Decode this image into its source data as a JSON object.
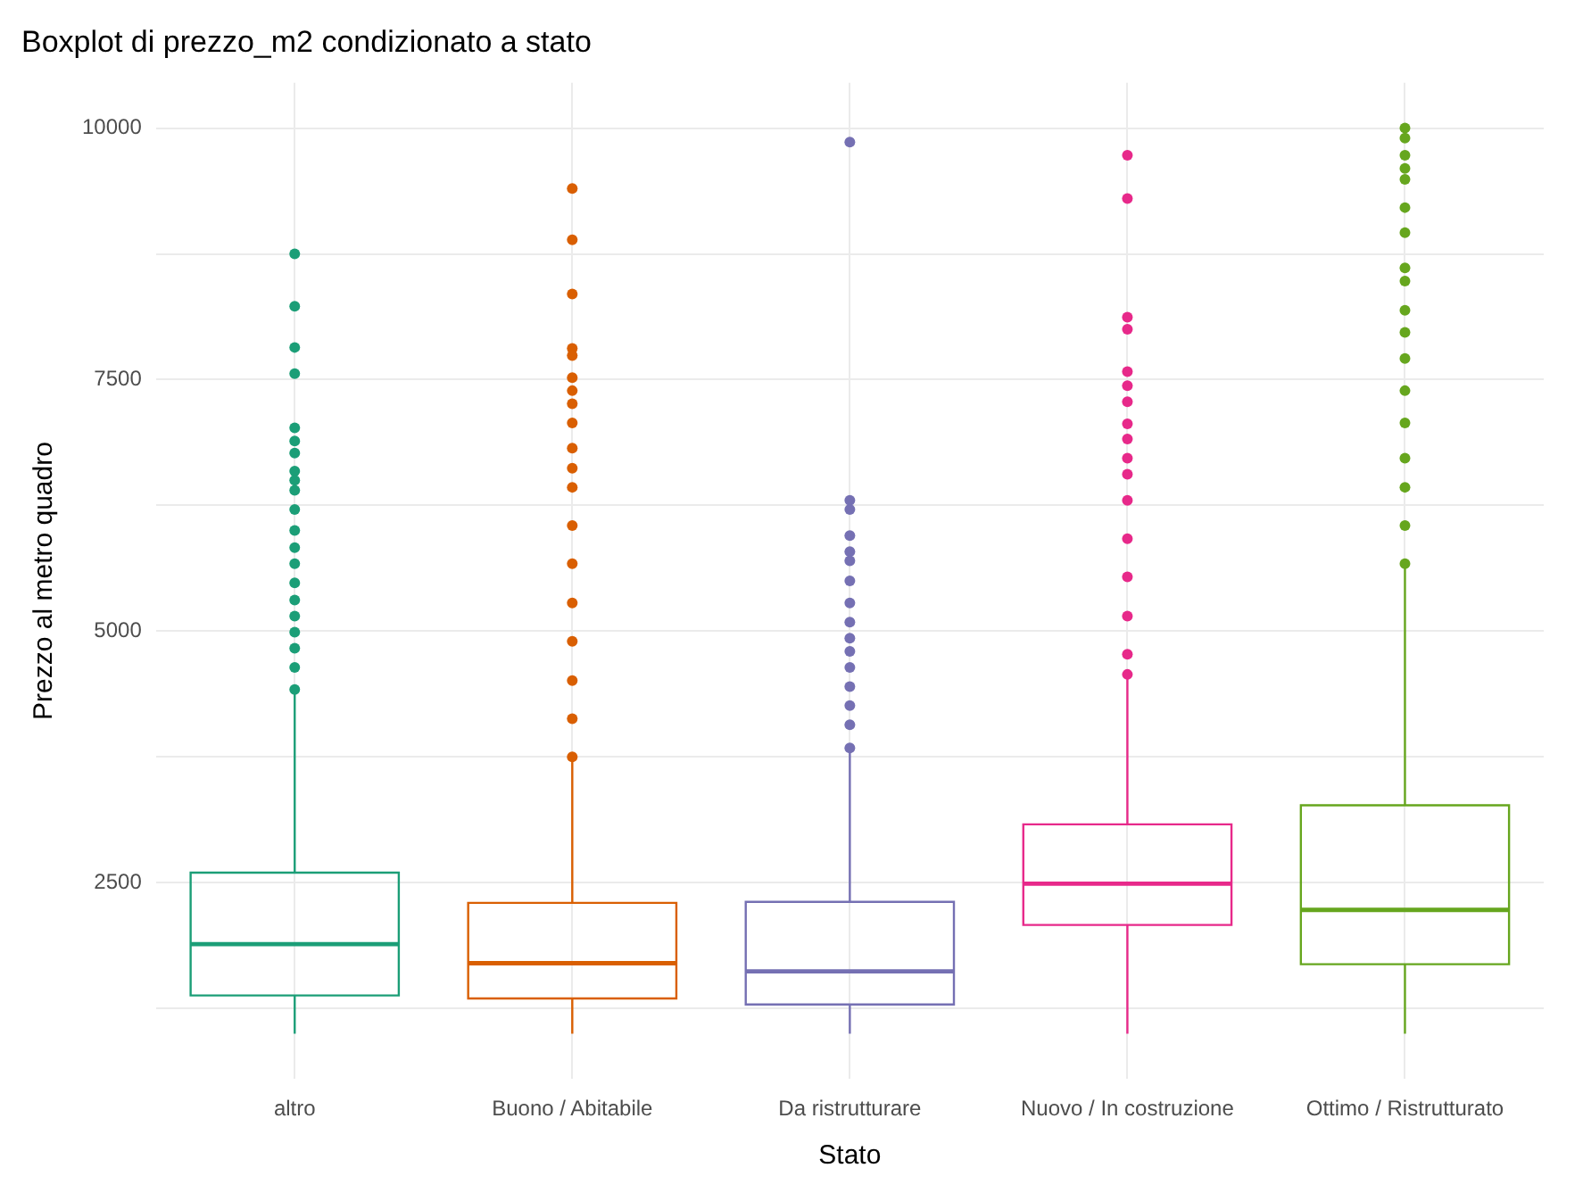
{
  "chart_data": {
    "type": "box",
    "title": "Boxplot di prezzo_m2 condizionato a stato",
    "xlabel": "Stato",
    "ylabel": "Prezzo al metro quadro",
    "categories": [
      "altro",
      "Buono / Abitabile",
      "Da ristrutturare",
      "Nuovo / In costruzione",
      "Ottimo / Ristrutturato"
    ],
    "colors": [
      "#1b9e77",
      "#d95f02",
      "#7570b3",
      "#e7298a",
      "#66a61e"
    ],
    "boxes": [
      {
        "low": 1000,
        "q1": 1380,
        "median": 1890,
        "q3": 2600,
        "high": 4390,
        "outliers": [
          8750,
          8230,
          7820,
          7560,
          7020,
          6890,
          6770,
          6590,
          6500,
          6400,
          6210,
          6000,
          5830,
          5670,
          5480,
          5310,
          5150,
          4990,
          4830,
          4640,
          4420
        ]
      },
      {
        "low": 1000,
        "q1": 1350,
        "median": 1700,
        "q3": 2300,
        "high": 3720,
        "outliers": [
          9400,
          8890,
          8350,
          7810,
          7740,
          7520,
          7390,
          7260,
          7070,
          6820,
          6620,
          6430,
          6050,
          5670,
          5280,
          4900,
          4510,
          4130,
          3750
        ]
      },
      {
        "low": 1000,
        "q1": 1290,
        "median": 1620,
        "q3": 2310,
        "high": 3810,
        "outliers": [
          9860,
          6300,
          6210,
          5950,
          5790,
          5700,
          5500,
          5280,
          5090,
          4930,
          4800,
          4640,
          4450,
          4260,
          4070,
          3840
        ]
      },
      {
        "low": 1000,
        "q1": 2080,
        "median": 2490,
        "q3": 3080,
        "high": 4550,
        "outliers": [
          9730,
          9300,
          8120,
          8000,
          7580,
          7440,
          7280,
          7060,
          6910,
          6720,
          6560,
          6300,
          5920,
          5540,
          5150,
          4770,
          4570
        ]
      },
      {
        "low": 1000,
        "q1": 1690,
        "median": 2230,
        "q3": 3270,
        "high": 5630,
        "outliers": [
          10000,
          9900,
          9730,
          9600,
          9490,
          9210,
          8960,
          8610,
          8480,
          8190,
          7970,
          7710,
          7390,
          7070,
          6720,
          6430,
          6050,
          5670
        ]
      }
    ],
    "ylim": [
      550,
      10450
    ],
    "yticks": [
      {
        "value": 1250,
        "label": null
      },
      2500,
      {
        "value": 3750,
        "label": null
      },
      5000,
      {
        "value": 6250,
        "label": null
      },
      7500,
      {
        "value": 8750,
        "label": null
      },
      10000
    ],
    "grid": true,
    "legend": false
  }
}
